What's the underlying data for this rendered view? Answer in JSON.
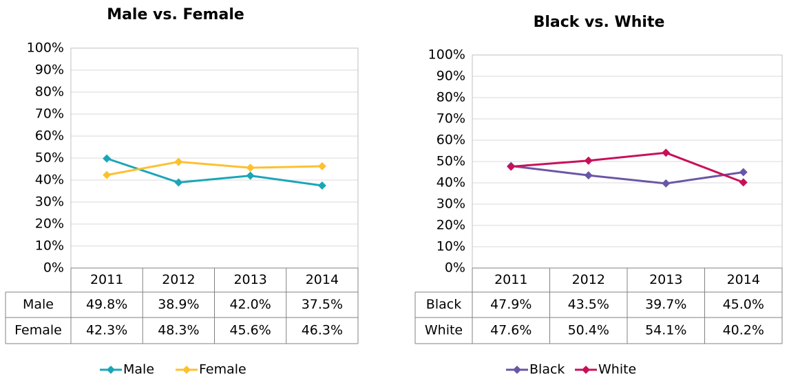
{
  "chart_data": [
    {
      "type": "line",
      "title": "Male vs. Female",
      "categories": [
        "2011",
        "2012",
        "2013",
        "2014"
      ],
      "series": [
        {
          "name": "Male",
          "color": "#1aa6b7",
          "values": [
            49.8,
            38.9,
            42.0,
            37.5
          ],
          "value_labels": [
            "49.8%",
            "38.9%",
            "42.0%",
            "37.5%"
          ]
        },
        {
          "name": "Female",
          "color": "#fdc02f",
          "values": [
            42.3,
            48.3,
            45.6,
            46.3
          ],
          "value_labels": [
            "42.3%",
            "48.3%",
            "45.6%",
            "46.3%"
          ]
        }
      ],
      "ylim": [
        0,
        100
      ],
      "yticks": [
        {
          "value": 0,
          "label": "0%"
        },
        {
          "value": 10,
          "label": "10%"
        },
        {
          "value": 20,
          "label": "20%"
        },
        {
          "value": 30,
          "label": "30%"
        },
        {
          "value": 40,
          "label": "40%"
        },
        {
          "value": 50,
          "label": "50%"
        },
        {
          "value": 60,
          "label": "60%"
        },
        {
          "value": 70,
          "label": "70%"
        },
        {
          "value": 80,
          "label": "80%"
        },
        {
          "value": 90,
          "label": "90%"
        },
        {
          "value": 100,
          "label": "100%"
        }
      ],
      "grid": true
    },
    {
      "type": "line",
      "title": "Black vs. White",
      "categories": [
        "2011",
        "2012",
        "2013",
        "2014"
      ],
      "series": [
        {
          "name": "Black",
          "color": "#6a56a6",
          "values": [
            47.9,
            43.5,
            39.7,
            45.0
          ],
          "value_labels": [
            "47.9%",
            "43.5%",
            "39.7%",
            "45.0%"
          ]
        },
        {
          "name": "White",
          "color": "#c8105a",
          "values": [
            47.6,
            50.4,
            54.1,
            40.2
          ],
          "value_labels": [
            "47.6%",
            "50.4%",
            "54.1%",
            "40.2%"
          ]
        }
      ],
      "ylim": [
        0,
        100
      ],
      "yticks": [
        {
          "value": 0,
          "label": "0%"
        },
        {
          "value": 10,
          "label": "10%"
        },
        {
          "value": 20,
          "label": "20%"
        },
        {
          "value": 30,
          "label": "30%"
        },
        {
          "value": 40,
          "label": "40%"
        },
        {
          "value": 50,
          "label": "50%"
        },
        {
          "value": 60,
          "label": "60%"
        },
        {
          "value": 70,
          "label": "70%"
        },
        {
          "value": 80,
          "label": "80%"
        },
        {
          "value": 90,
          "label": "90%"
        },
        {
          "value": 100,
          "label": "100%"
        }
      ],
      "grid": true
    }
  ]
}
